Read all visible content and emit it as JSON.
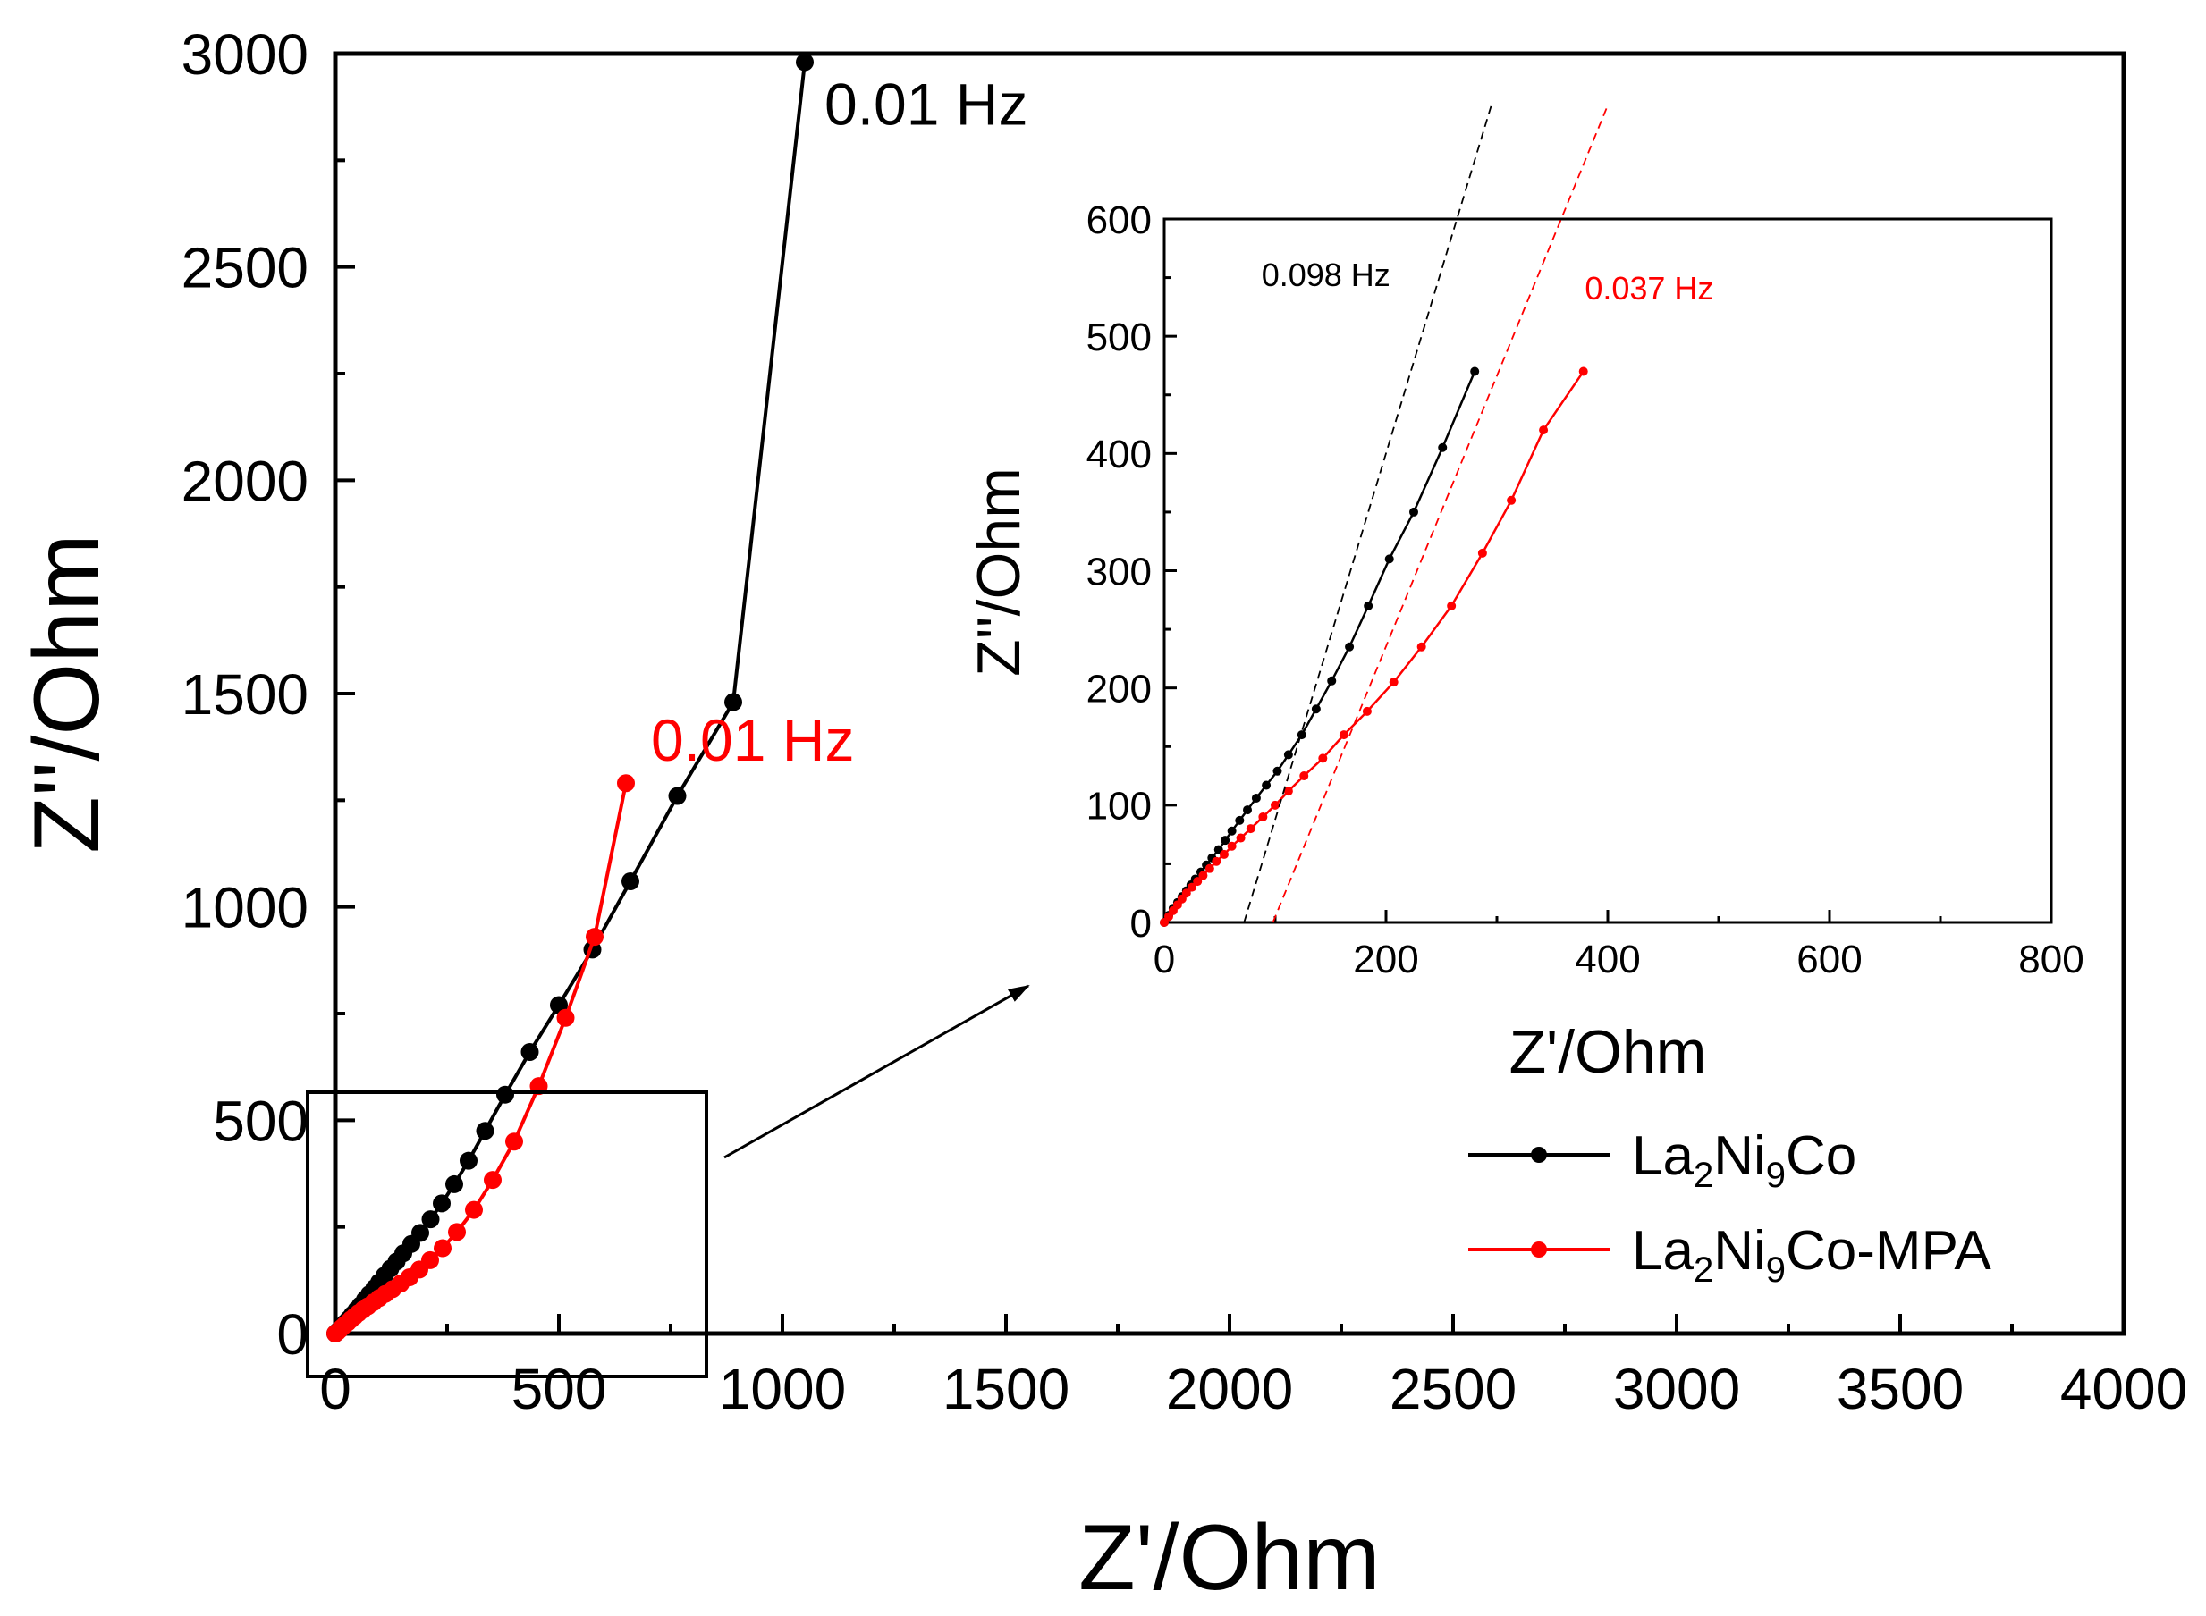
{
  "colors": {
    "black_series": "#000000",
    "red_series": "#ff0000",
    "axis": "#000000"
  },
  "chart_data": [
    {
      "id": "main",
      "type": "scatter",
      "xlabel": "Z'/Ohm",
      "ylabel": "Z''/Ohm",
      "xlim": [
        0,
        4000
      ],
      "ylim": [
        0,
        3000
      ],
      "xticks": [
        0,
        500,
        1000,
        1500,
        2000,
        2500,
        3000,
        3500,
        4000
      ],
      "yticks": [
        0,
        500,
        1000,
        1500,
        2000,
        2500,
        3000
      ],
      "xtick_labels": [
        "0",
        "500",
        "1000",
        "1500",
        "2000",
        "2500",
        "3000",
        "3500",
        "4000"
      ],
      "ytick_labels": [
        "0",
        "500",
        "1000",
        "1500",
        "2000",
        "2500",
        "3000"
      ],
      "annotations": [
        {
          "text": "0.01 Hz",
          "series": "La2Ni9Co",
          "x": 1050,
          "y": 2980
        },
        {
          "text": "0.01 Hz",
          "series": "La2Ni9Co-MPA",
          "x": 650,
          "y": 1290
        }
      ],
      "legend": {
        "placement": "bottom-right",
        "entries": [
          {
            "base": "La",
            "s1": "2",
            "mid": "Ni",
            "s2": "9",
            "tail": "Co",
            "series": "La2Ni9Co"
          },
          {
            "base": "La",
            "s1": "2",
            "mid": "Ni",
            "s2": "9",
            "tail": "Co-MPA",
            "series": "La2Ni9Co-MPA"
          }
        ]
      },
      "series": [
        {
          "name": "La2Ni9Co",
          "color": "#000000",
          "x": [
            0,
            5,
            10,
            16,
            22,
            30,
            38,
            47,
            56,
            66,
            76,
            87,
            98,
            110,
            123,
            137,
            152,
            170,
            190,
            213,
            238,
            266,
            298,
            335,
            380,
            435,
            500,
            575,
            660,
            765,
            890,
            1050
          ],
          "y": [
            0,
            5,
            10,
            17,
            25,
            34,
            44,
            55,
            66,
            79,
            92,
            106,
            120,
            136,
            152,
            169,
            188,
            210,
            236,
            268,
            305,
            350,
            405,
            475,
            560,
            660,
            770,
            900,
            1060,
            1260,
            1480,
            2980
          ]
        },
        {
          "name": "La2Ni9Co-MPA",
          "color": "#ff0000",
          "x": [
            0,
            5,
            10,
            15,
            21,
            28,
            35,
            43,
            52,
            62,
            73,
            85,
            98,
            112,
            128,
            146,
            166,
            188,
            212,
            240,
            272,
            310,
            352,
            400,
            455,
            515,
            580,
            650
          ],
          "y": [
            0,
            4,
            9,
            14,
            20,
            26,
            33,
            40,
            48,
            56,
            64,
            73,
            83,
            93,
            104,
            117,
            132,
            150,
            172,
            200,
            238,
            290,
            360,
            450,
            580,
            740,
            930,
            1290
          ]
        }
      ]
    },
    {
      "id": "inset",
      "type": "scatter",
      "xlabel": "Z'/Ohm",
      "ylabel": "Z''/Ohm",
      "xlim": [
        0,
        800
      ],
      "ylim": [
        0,
        600
      ],
      "xticks": [
        0,
        200,
        400,
        600,
        800
      ],
      "yticks": [
        0,
        100,
        200,
        300,
        400,
        500,
        600
      ],
      "xtick_labels": [
        "0",
        "200",
        "400",
        "600",
        "800"
      ],
      "ytick_labels": [
        "0",
        "100",
        "200",
        "300",
        "400",
        "500",
        "600"
      ],
      "annotations": [
        {
          "text": "0.098 Hz",
          "series": "La2Ni9Co",
          "x": 253,
          "y": 552
        },
        {
          "text": "0.037 Hz",
          "series": "La2Ni9Co-MPA",
          "x": 343,
          "y": 548
        }
      ],
      "fit_lines": [
        {
          "series": "La2Ni9Co",
          "from": [
            72,
            0
          ],
          "to": [
            295,
            697
          ]
        },
        {
          "series": "La2Ni9Co-MPA",
          "from": [
            98,
            0
          ],
          "to": [
            400,
            697
          ]
        }
      ],
      "series": [
        {
          "name": "La2Ni9Co",
          "color": "#000000",
          "x": [
            0,
            4,
            8,
            12,
            16,
            20,
            24,
            28,
            33,
            38,
            43,
            49,
            55,
            61,
            68,
            75,
            83,
            92,
            102,
            112,
            124,
            137,
            151,
            167,
            184,
            203,
            225,
            251,
            280
          ],
          "y": [
            0,
            6,
            12,
            17,
            22,
            27,
            32,
            37,
            43,
            49,
            55,
            62,
            70,
            78,
            87,
            96,
            106,
            117,
            129,
            143,
            160,
            182,
            206,
            235,
            270,
            310,
            350,
            405,
            470
          ]
        },
        {
          "name": "La2Ni9Co-MPA",
          "color": "#ff0000",
          "x": [
            0,
            4,
            8,
            12,
            16,
            20,
            25,
            30,
            35,
            41,
            47,
            54,
            61,
            69,
            78,
            89,
            100,
            112,
            126,
            143,
            162,
            183,
            207,
            232,
            259,
            287,
            313,
            342,
            378
          ],
          "y": [
            0,
            5,
            10,
            15,
            20,
            25,
            30,
            35,
            40,
            46,
            52,
            58,
            65,
            72,
            80,
            90,
            100,
            112,
            125,
            140,
            160,
            180,
            205,
            235,
            270,
            315,
            360,
            420,
            470
          ]
        }
      ]
    }
  ]
}
